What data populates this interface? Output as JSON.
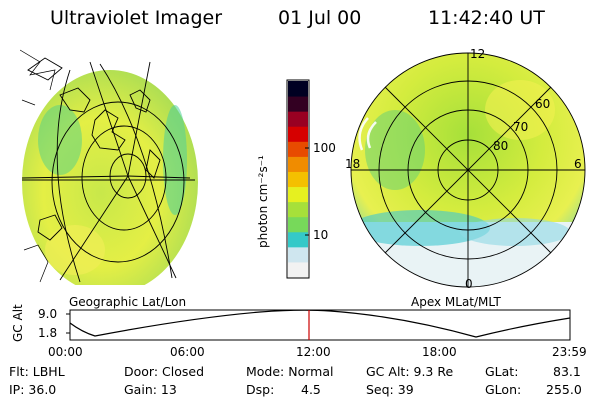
{
  "header": {
    "instrument": "Ultraviolet Imager",
    "date": "01 Jul 00",
    "time": "11:42:40 UT"
  },
  "left_panel": {
    "label": "Geographic Lat/Lon"
  },
  "right_panel": {
    "label": "Apex MLat/MLT",
    "mlat_labels": [
      "80",
      "70",
      "60"
    ],
    "mlt_labels": {
      "noon": "12",
      "dawn": "6",
      "midnight": "0",
      "dusk": "18"
    }
  },
  "colorbar": {
    "unit": "photon cm⁻²s⁻¹",
    "ticks": [
      "100",
      "10"
    ],
    "scale": "log",
    "colors": [
      "#f2f2f2",
      "#cfe6ef",
      "#35c9c8",
      "#77d95a",
      "#a6e03a",
      "#e6f020",
      "#f4c000",
      "#f08c00",
      "#e84b00",
      "#d60000",
      "#990022",
      "#330022",
      "#000022"
    ]
  },
  "altitude_plot": {
    "ylabel": "GC Alt",
    "yticks": [
      "9.0",
      "1.8"
    ],
    "xticks": [
      "00:00",
      "06:00",
      "12:00",
      "18:00",
      "23:59"
    ],
    "current_time_marker": "11:42:40",
    "marker_color": "#cc0000"
  },
  "info": {
    "flt": "Flt: LBHL",
    "ip": "IP: 36.0",
    "door": "Door: Closed",
    "gain": "Gain: 13",
    "mode": "Mode: Normal",
    "dsp_label": "Dsp:",
    "dsp_value": "4.5",
    "gc_alt": "GC Alt: 9.3 Re",
    "seq": "Seq: 39",
    "glat_label": "GLat:",
    "glat_value": "83.1",
    "glon_label": "GLon:",
    "glon_value": "255.0"
  }
}
